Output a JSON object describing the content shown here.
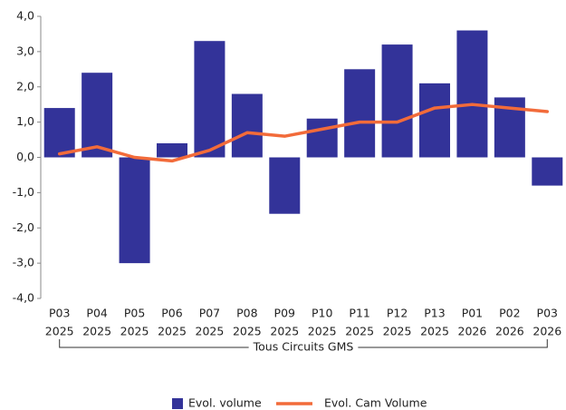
{
  "chart_data": {
    "type": "bar",
    "categories": [
      [
        "P03",
        "2025"
      ],
      [
        "P04",
        "2025"
      ],
      [
        "P05",
        "2025"
      ],
      [
        "P06",
        "2025"
      ],
      [
        "P07",
        "2025"
      ],
      [
        "P08",
        "2025"
      ],
      [
        "P09",
        "2025"
      ],
      [
        "P10",
        "2025"
      ],
      [
        "P11",
        "2025"
      ],
      [
        "P12",
        "2025"
      ],
      [
        "P13",
        "2025"
      ],
      [
        "P01",
        "2026"
      ],
      [
        "P02",
        "2026"
      ],
      [
        "P03",
        "2026"
      ]
    ],
    "group_label": "Tous Circuits GMS",
    "series": [
      {
        "name": "Evol. volume",
        "type": "bar",
        "color": "#333399",
        "values": [
          1.4,
          2.4,
          -3.0,
          0.4,
          3.3,
          1.8,
          -1.6,
          1.1,
          2.5,
          3.2,
          2.1,
          3.6,
          1.7,
          -0.8
        ]
      },
      {
        "name": "Evol. Cam Volume",
        "type": "line",
        "color": "#f26b3a",
        "values": [
          0.1,
          0.3,
          0.0,
          -0.1,
          0.2,
          0.7,
          0.6,
          0.8,
          1.0,
          1.0,
          1.4,
          1.5,
          1.4,
          1.3
        ]
      }
    ],
    "ylim": [
      -4,
      4
    ],
    "yticks": [
      {
        "value": -4,
        "label": "-4,0"
      },
      {
        "value": -3,
        "label": "-3,0"
      },
      {
        "value": -2,
        "label": "-2,0"
      },
      {
        "value": -1,
        "label": "-1,0"
      },
      {
        "value": 0,
        "label": "0,0"
      },
      {
        "value": 1,
        "label": "1,0"
      },
      {
        "value": 2,
        "label": "2,0"
      },
      {
        "value": 3,
        "label": "3,0"
      },
      {
        "value": 4,
        "label": "4,0"
      }
    ],
    "legend": "bottom"
  }
}
